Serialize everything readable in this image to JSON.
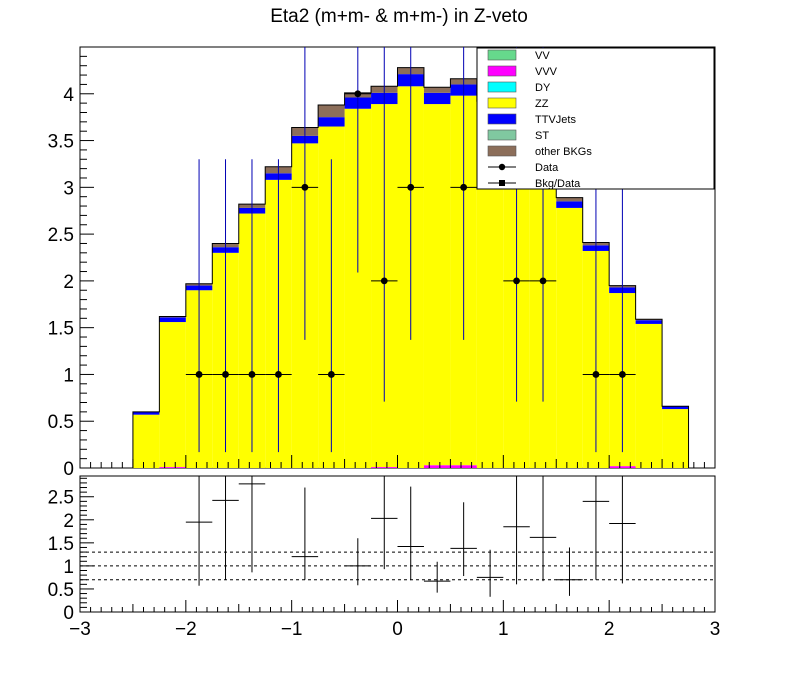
{
  "chart_data": {
    "type": "histogram",
    "title": "Eta2 (m+m- & m+m-) in Z-veto",
    "bin_edges": [
      -3.0,
      -2.75,
      -2.5,
      -2.25,
      -2.0,
      -1.75,
      -1.5,
      -1.25,
      -1.0,
      -0.75,
      -0.5,
      -0.25,
      0.0,
      0.25,
      0.5,
      0.75,
      1.0,
      1.25,
      1.5,
      1.75,
      2.0,
      2.25,
      2.5,
      2.75,
      3.0
    ],
    "legend": [
      {
        "label": "VV",
        "color": "#66d98c",
        "kind": "fill"
      },
      {
        "label": "VVV",
        "color": "#ff00ff",
        "kind": "fill"
      },
      {
        "label": "DY",
        "color": "#00ffff",
        "kind": "fill"
      },
      {
        "label": "ZZ",
        "color": "#ffff00",
        "kind": "fill"
      },
      {
        "label": "TTVJets",
        "color": "#0000ff",
        "kind": "fill"
      },
      {
        "label": "ST",
        "color": "#80c8a0",
        "kind": "fill"
      },
      {
        "label": "other BKGs",
        "color": "#8c6e5a",
        "kind": "fill"
      },
      {
        "label": "Data",
        "color": "#000000",
        "kind": "marker-circle"
      },
      {
        "label": "Bkg/Data",
        "color": "#000000",
        "kind": "marker-square"
      }
    ],
    "stack_order": [
      "VVV",
      "ZZ",
      "TTVJets",
      "other BKGs"
    ],
    "series": [
      {
        "name": "VVV",
        "color": "#ff00ff",
        "values": [
          0,
          0,
          0,
          0.01,
          0,
          0,
          0,
          0,
          0,
          0,
          0,
          0.01,
          0,
          0.03,
          0.03,
          0,
          0,
          0,
          0,
          0,
          0.02,
          0,
          0,
          0
        ]
      },
      {
        "name": "ZZ",
        "color": "#ffff00",
        "values": [
          0,
          0,
          0.57,
          1.55,
          1.9,
          2.3,
          2.72,
          3.08,
          3.47,
          3.65,
          3.84,
          3.88,
          4.08,
          3.86,
          3.95,
          3.75,
          3.45,
          3.3,
          2.78,
          2.32,
          1.85,
          1.54,
          0.63,
          0
        ]
      },
      {
        "name": "TTVJets",
        "color": "#0000ff",
        "values": [
          0,
          0,
          0.03,
          0.05,
          0.05,
          0.06,
          0.06,
          0.07,
          0.08,
          0.1,
          0.12,
          0.12,
          0.13,
          0.12,
          0.12,
          0.1,
          0.08,
          0.08,
          0.07,
          0.06,
          0.06,
          0.04,
          0.03,
          0
        ]
      },
      {
        "name": "other BKGs",
        "color": "#8c6e5a",
        "values": [
          0,
          0,
          0,
          0.01,
          0.02,
          0.04,
          0.04,
          0.07,
          0.09,
          0.13,
          0.05,
          0.07,
          0.07,
          0.06,
          0.06,
          0.07,
          0.09,
          0.06,
          0.04,
          0.03,
          0.02,
          0.01,
          0,
          0
        ]
      }
    ],
    "data_points": {
      "name": "Data",
      "x": [
        -1.875,
        -1.625,
        -1.375,
        -1.125,
        -0.875,
        -0.625,
        -0.375,
        -0.125,
        0.125,
        0.625,
        1.125,
        1.375,
        1.875,
        2.125
      ],
      "y": [
        1,
        1,
        1,
        1,
        3,
        1,
        4,
        2,
        3,
        3,
        2,
        2,
        1,
        1
      ],
      "err_low": [
        0.83,
        0.83,
        0.83,
        0.83,
        1.63,
        0.83,
        1.91,
        1.29,
        1.63,
        1.63,
        1.29,
        1.29,
        0.83,
        0.83
      ],
      "err_high": [
        2.3,
        2.3,
        2.3,
        2.3,
        2.92,
        2.3,
        3.16,
        2.64,
        2.92,
        2.92,
        2.64,
        2.64,
        2.3,
        2.3
      ]
    },
    "upper_xlim": [
      -3,
      3
    ],
    "upper_ylim": [
      0,
      4.5
    ],
    "upper_yticks": [
      "0",
      "0.5",
      "1",
      "1.5",
      "2",
      "2.5",
      "3",
      "3.5",
      "4"
    ],
    "ratio": {
      "name": "Bkg/Data",
      "x": [
        -1.875,
        -1.625,
        -1.375,
        -0.875,
        -0.375,
        -0.125,
        0.125,
        0.375,
        0.625,
        0.875,
        1.125,
        1.375,
        1.625,
        1.875,
        2.125
      ],
      "y": [
        1.95,
        2.42,
        2.78,
        1.2,
        1.0,
        2.03,
        1.42,
        0.67,
        1.38,
        0.75,
        1.85,
        1.62,
        0.7,
        2.4,
        1.92
      ],
      "err_low": [
        1.38,
        1.72,
        1.92,
        0.5,
        0.42,
        1.1,
        0.73,
        0.25,
        0.6,
        0.42,
        1.25,
        0.95,
        0.35,
        1.7,
        1.3
      ],
      "err_high": [
        1.6,
        1.8,
        1.9,
        1.5,
        0.6,
        1.3,
        1.3,
        0.42,
        1.0,
        0.6,
        1.5,
        1.4,
        0.7,
        1.5,
        1.5
      ],
      "ylim": [
        0,
        2.95
      ],
      "reference_lines": [
        0.7,
        1.0,
        1.3
      ],
      "yticks": [
        "0",
        "0.5",
        "1",
        "1.5",
        "2",
        "2.5"
      ]
    },
    "xticks": [
      "−3",
      "−2",
      "−1",
      "0",
      "1",
      "2",
      "3"
    ]
  }
}
